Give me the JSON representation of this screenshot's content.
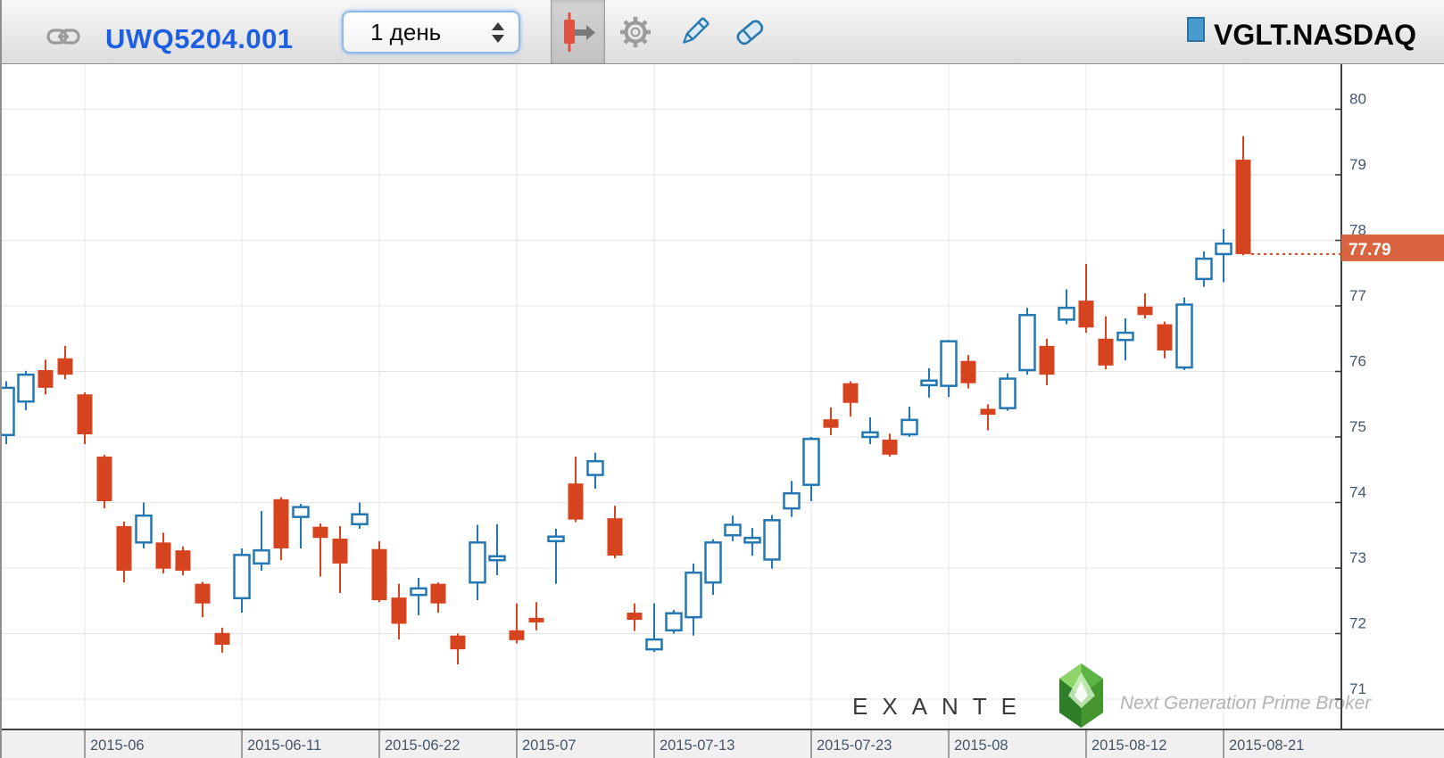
{
  "toolbar": {
    "instrument_id": "UWQ5204.001",
    "timeframe": "1 день",
    "symbol": "VGLT.NASDAQ",
    "icons": [
      "link-icon",
      "candlestick-order-icon",
      "gear-icon",
      "pencil-icon",
      "eraser-icon"
    ],
    "accent_blue": "#1d5fe0"
  },
  "chart": {
    "last_price_label": "77.79",
    "marker_color": "#d9643f",
    "marker_line_color": "#e0401f",
    "up_color": "#2378b4",
    "down_color": "#d6431f",
    "grid_color": "#e4e4e4",
    "axis_color": "#3f3f3f",
    "tick_label_color": "#44566b",
    "band_bg": "#f0f0f0"
  },
  "watermark": {
    "brand": "EXANTE",
    "tagline": "Next Generation Prime Broker",
    "gem_icon": "green-gem-logo"
  },
  "chart_data": {
    "type": "candlestick",
    "symbol": "VGLT.NASDAQ",
    "timeframe_label": "1 день",
    "ylim": [
      70.6,
      80.7
    ],
    "y_ticks": [
      71,
      72,
      73,
      74,
      75,
      76,
      77,
      78,
      79,
      80
    ],
    "grid": true,
    "last_price": 77.79,
    "x_tick_labels": [
      {
        "index": 4,
        "label": "2015-06"
      },
      {
        "index": 12,
        "label": "2015-06-11"
      },
      {
        "index": 19,
        "label": "2015-06-22"
      },
      {
        "index": 26,
        "label": "2015-07"
      },
      {
        "index": 33,
        "label": "2015-07-13"
      },
      {
        "index": 41,
        "label": "2015-07-23"
      },
      {
        "index": 48,
        "label": "2015-08"
      },
      {
        "index": 55,
        "label": "2015-08-12"
      },
      {
        "index": 62,
        "label": "2015-08-21"
      }
    ],
    "ohlc_order": [
      "open",
      "high",
      "low",
      "close"
    ],
    "candles": [
      [
        75.03,
        75.85,
        74.89,
        75.75
      ],
      [
        75.54,
        76.01,
        75.41,
        75.95
      ],
      [
        76.02,
        76.18,
        75.65,
        75.75
      ],
      [
        76.2,
        76.39,
        75.88,
        75.95
      ],
      [
        75.65,
        75.68,
        74.89,
        75.04
      ],
      [
        74.7,
        74.73,
        73.91,
        74.02
      ],
      [
        73.64,
        73.71,
        72.78,
        72.96
      ],
      [
        73.39,
        74.0,
        73.3,
        73.8
      ],
      [
        73.39,
        73.54,
        72.92,
        72.99
      ],
      [
        73.27,
        73.33,
        72.89,
        72.96
      ],
      [
        72.76,
        72.79,
        72.25,
        72.46
      ],
      [
        72.01,
        72.09,
        71.71,
        71.83
      ],
      [
        72.54,
        73.3,
        72.32,
        73.2
      ],
      [
        73.07,
        73.87,
        72.96,
        73.27
      ],
      [
        74.05,
        74.08,
        73.12,
        73.3
      ],
      [
        73.78,
        73.98,
        73.3,
        73.93
      ],
      [
        73.63,
        73.68,
        72.87,
        73.46
      ],
      [
        73.45,
        73.64,
        72.62,
        73.07
      ],
      [
        73.67,
        74.0,
        73.6,
        73.82
      ],
      [
        73.29,
        73.41,
        72.48,
        72.51
      ],
      [
        72.55,
        72.76,
        71.91,
        72.15
      ],
      [
        72.59,
        72.85,
        72.28,
        72.69
      ],
      [
        72.76,
        72.78,
        72.32,
        72.46
      ],
      [
        71.97,
        72.0,
        71.53,
        71.76
      ],
      [
        72.78,
        73.66,
        72.51,
        73.39
      ],
      [
        73.12,
        73.67,
        72.89,
        73.18
      ],
      [
        72.05,
        72.46,
        71.85,
        71.9
      ],
      [
        72.24,
        72.48,
        72.05,
        72.17
      ],
      [
        73.41,
        73.6,
        72.76,
        73.48
      ],
      [
        74.29,
        74.7,
        73.7,
        73.74
      ],
      [
        74.42,
        74.76,
        74.21,
        74.63
      ],
      [
        73.76,
        73.95,
        73.15,
        73.19
      ],
      [
        72.32,
        72.46,
        72.04,
        72.21
      ],
      [
        71.76,
        72.46,
        71.72,
        71.91
      ],
      [
        72.05,
        72.36,
        72.0,
        72.31
      ],
      [
        72.25,
        73.07,
        71.97,
        72.93
      ],
      [
        72.78,
        73.44,
        72.59,
        73.39
      ],
      [
        73.5,
        73.8,
        73.41,
        73.66
      ],
      [
        73.39,
        73.61,
        73.19,
        73.46
      ],
      [
        73.13,
        73.81,
        72.99,
        73.73
      ],
      [
        73.91,
        74.33,
        73.78,
        74.14
      ],
      [
        74.27,
        75.0,
        74.02,
        74.97
      ],
      [
        75.27,
        75.45,
        75.03,
        75.14
      ],
      [
        75.82,
        75.85,
        75.31,
        75.52
      ],
      [
        75.0,
        75.3,
        74.89,
        75.07
      ],
      [
        74.96,
        75.05,
        74.7,
        74.73
      ],
      [
        75.04,
        75.46,
        75.0,
        75.26
      ],
      [
        75.79,
        76.05,
        75.6,
        75.86
      ],
      [
        75.78,
        76.48,
        75.61,
        76.46
      ],
      [
        76.16,
        76.25,
        75.74,
        75.82
      ],
      [
        75.43,
        75.5,
        75.1,
        75.34
      ],
      [
        75.44,
        75.97,
        75.4,
        75.89
      ],
      [
        76.02,
        76.97,
        75.95,
        76.86
      ],
      [
        76.39,
        76.5,
        75.79,
        75.95
      ],
      [
        76.79,
        77.25,
        76.72,
        76.97
      ],
      [
        77.08,
        77.64,
        76.59,
        76.67
      ],
      [
        76.5,
        76.84,
        76.03,
        76.09
      ],
      [
        76.48,
        76.81,
        76.17,
        76.59
      ],
      [
        76.99,
        77.19,
        76.81,
        76.86
      ],
      [
        76.72,
        76.76,
        76.2,
        76.32
      ],
      [
        76.06,
        77.13,
        76.02,
        77.02
      ],
      [
        77.41,
        77.83,
        77.29,
        77.72
      ],
      [
        77.79,
        78.17,
        77.36,
        77.95
      ],
      [
        79.23,
        79.59,
        77.77,
        77.79
      ]
    ]
  }
}
